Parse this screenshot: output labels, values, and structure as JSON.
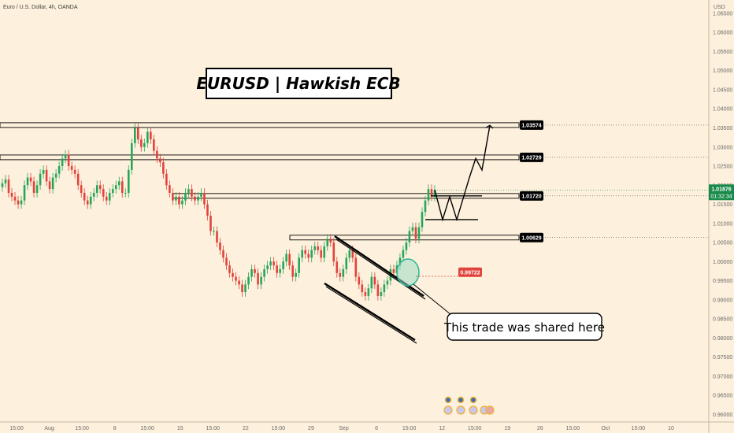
{
  "header": {
    "symbol": "Euro / U.S. Dollar, 4h, OANDA",
    "currency": "USD"
  },
  "title": "EURUSD | Hawkish ECB",
  "callout": "This trade was shared here",
  "current_price": {
    "value": "1.01876",
    "countdown": "01:32:34",
    "color": "#1a8a4a"
  },
  "colors": {
    "background": "#fdf0dc",
    "up_candle": "#26a65b",
    "down_candle": "#e0433b",
    "entry_tag": "#e0433b",
    "level_tag": "#000000",
    "accent_circle": "#2bb596"
  },
  "chart_data": {
    "type": "candlestick",
    "title": "EURUSD | Hawkish ECB",
    "ylim": [
      0.958,
      1.0685
    ],
    "y_axis_position": "right",
    "y_ticks": [
      "1.06500",
      "1.06000",
      "1.05500",
      "1.05000",
      "1.04500",
      "1.04000",
      "1.03500",
      "1.03000",
      "1.02500",
      "1.02000",
      "1.01500",
      "1.01000",
      "1.00500",
      "1.00000",
      "0.99500",
      "0.99000",
      "0.98500",
      "0.98000",
      "0.97500",
      "0.97000",
      "0.96500",
      "0.96000"
    ],
    "x_ticks": [
      "15:00",
      "Aug",
      "15:00",
      "8",
      "15:00",
      "15",
      "15:00",
      "22",
      "15:00",
      "29",
      "Sep",
      "6",
      "15:00",
      "12",
      "15:00",
      "19",
      "26",
      "15:00",
      "Oct",
      "15:00",
      "10"
    ],
    "levels": [
      {
        "value": 1.03574,
        "label": "1.03574"
      },
      {
        "value": 1.02729,
        "label": "1.02729"
      },
      {
        "value": 1.0172,
        "label": "1.01720"
      },
      {
        "value": 1.00629,
        "label": "1.00629"
      }
    ],
    "entry": {
      "value": 0.99722,
      "label": "0.99722"
    },
    "close": [
      1.0205,
      1.0215,
      1.018,
      1.017,
      1.016,
      1.015,
      1.016,
      1.02,
      1.022,
      1.021,
      1.018,
      1.02,
      1.023,
      1.024,
      1.021,
      1.019,
      1.022,
      1.023,
      1.025,
      1.027,
      1.028,
      1.025,
      1.024,
      1.023,
      1.02,
      1.018,
      1.016,
      1.015,
      1.017,
      1.018,
      1.02,
      1.019,
      1.017,
      1.016,
      1.018,
      1.019,
      1.02,
      1.021,
      1.018,
      1.018,
      1.024,
      1.031,
      1.035,
      1.032,
      1.03,
      1.031,
      1.034,
      1.032,
      1.029,
      1.027,
      1.026,
      1.023,
      1.02,
      1.018,
      1.016,
      1.017,
      1.015,
      1.016,
      1.018,
      1.019,
      1.017,
      1.016,
      1.017,
      1.018,
      1.015,
      1.012,
      1.008,
      1.008,
      1.005,
      1.003,
      1.001,
      0.999,
      0.997,
      0.996,
      0.995,
      0.994,
      0.992,
      0.994,
      0.996,
      0.998,
      0.997,
      0.994,
      0.996,
      0.998,
      0.999,
      1.0,
      0.999,
      0.997,
      0.998,
      1.0,
      1.002,
      0.999,
      0.996,
      0.997,
      1.001,
      1.003,
      1.002,
      1.001,
      1.003,
      1.004,
      1.003,
      1.001,
      1.004,
      1.006,
      1.005,
      1.0,
      0.997,
      0.996,
      0.998,
      1.001,
      1.003,
      1.001,
      0.996,
      0.994,
      0.992,
      0.991,
      0.993,
      0.996,
      0.994,
      0.991,
      0.992,
      0.994,
      0.995,
      0.998,
      0.997,
      0.999,
      1.001,
      1.003,
      1.005,
      1.008,
      1.009,
      1.006,
      1.009,
      1.013,
      1.016,
      1.019,
      1.017,
      1.0188
    ],
    "projection": [
      1.0188,
      1.011,
      1.017,
      1.011,
      1.022,
      1.027,
      1.024,
      1.0357
    ]
  }
}
